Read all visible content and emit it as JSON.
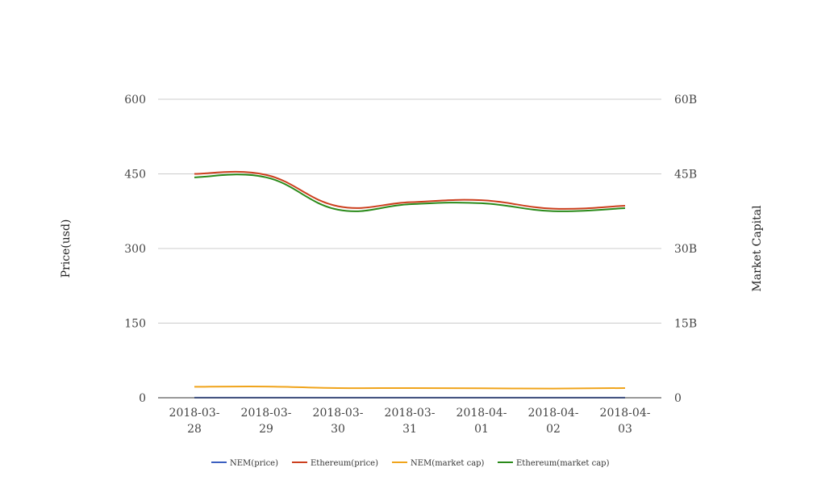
{
  "chart_data": {
    "type": "line",
    "title": "",
    "x": [
      "2018-03-28",
      "2018-03-29",
      "2018-03-30",
      "2018-03-31",
      "2018-04-01",
      "2018-04-02",
      "2018-04-03"
    ],
    "x_tick_labels": [
      [
        "2018-03-",
        "28"
      ],
      [
        "2018-03-",
        "29"
      ],
      [
        "2018-03-",
        "30"
      ],
      [
        "2018-03-",
        "31"
      ],
      [
        "2018-04-",
        "01"
      ],
      [
        "2018-04-",
        "02"
      ],
      [
        "2018-04-",
        "03"
      ]
    ],
    "y_left": {
      "label": "Price(usd)",
      "range": [
        0,
        600
      ],
      "ticks": [
        0,
        150,
        300,
        450,
        600
      ],
      "tick_labels": [
        "0",
        "150",
        "300",
        "450",
        "600"
      ]
    },
    "y_right": {
      "label": "Market Capital",
      "range": [
        0,
        60000000000
      ],
      "ticks": [
        0,
        15000000000,
        30000000000,
        45000000000,
        60000000000
      ],
      "tick_labels": [
        "0",
        "15B",
        "30B",
        "45B",
        "60B"
      ]
    },
    "grid": true,
    "legend_position": "bottom",
    "series": [
      {
        "name": "NEM(price)",
        "axis": "left",
        "color": "#3b5fc0",
        "values": [
          0.24,
          0.25,
          0.22,
          0.22,
          0.21,
          0.21,
          0.22
        ]
      },
      {
        "name": "Ethereum(price)",
        "axis": "right_scale_left",
        "axis_note": "",
        "color": "#cc3f1e",
        "values": [
          450,
          448,
          385,
          393,
          397,
          380,
          386
        ],
        "axis_side": "left"
      },
      {
        "name": "NEM(market cap)",
        "axis_side": "right",
        "color": "#f0a41b",
        "values": [
          2200000000,
          2250000000,
          1950000000,
          1950000000,
          1900000000,
          1850000000,
          1950000000
        ]
      },
      {
        "name": "Ethereum(market cap)",
        "axis_side": "right",
        "color": "#2a8a1a",
        "values": [
          44300000000,
          44300000000,
          37800000000,
          38900000000,
          39100000000,
          37500000000,
          38100000000
        ]
      }
    ]
  }
}
